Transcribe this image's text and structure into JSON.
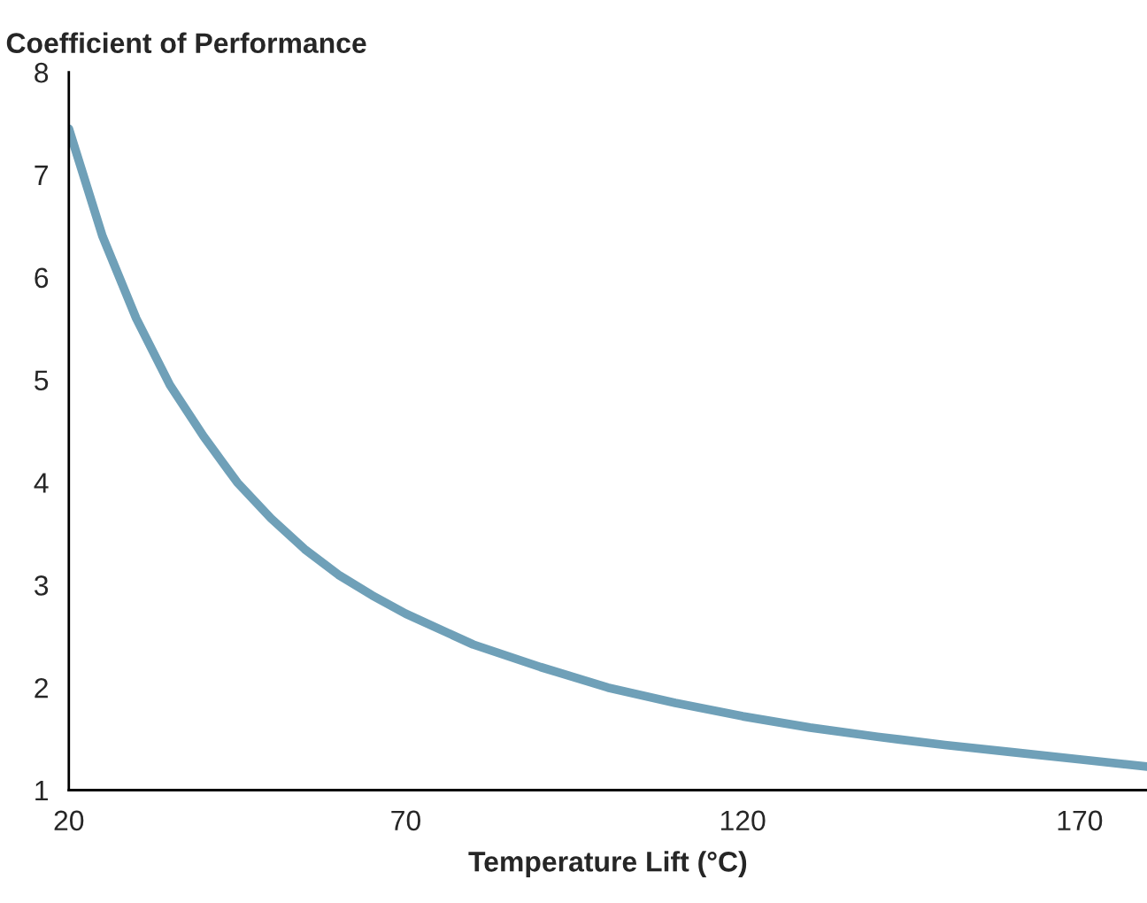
{
  "chart_data": {
    "type": "line",
    "ylabel": "Coefficient of Performance",
    "xlabel": "Temperature Lift (°C)",
    "xlim": [
      20,
      180
    ],
    "ylim": [
      1,
      8
    ],
    "xticks": [
      20,
      70,
      120,
      170
    ],
    "yticks": [
      1,
      2,
      3,
      4,
      5,
      6,
      7,
      8
    ],
    "grid": false,
    "marker": "none",
    "line_style": "solid",
    "series": [
      {
        "color": "#6fa0b8",
        "x": [
          20,
          25,
          30,
          35,
          40,
          45,
          50,
          55,
          60,
          65,
          70,
          80,
          90,
          100,
          110,
          120,
          130,
          140,
          150,
          160,
          170,
          180
        ],
        "values": [
          7.45,
          6.4,
          5.6,
          4.95,
          4.45,
          4.0,
          3.65,
          3.35,
          3.1,
          2.9,
          2.72,
          2.42,
          2.2,
          2.0,
          1.85,
          1.72,
          1.61,
          1.52,
          1.44,
          1.37,
          1.3,
          1.23
        ]
      }
    ]
  }
}
